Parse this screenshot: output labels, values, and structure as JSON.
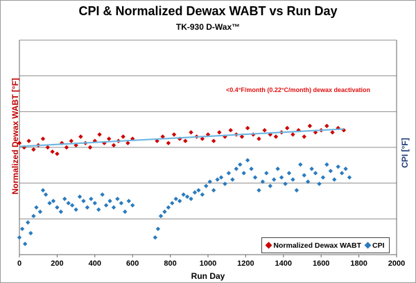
{
  "chart_data": {
    "type": "scatter",
    "title": "CPI & Normalized Dewax WABT vs Run Day",
    "subtitle": "TK-930 D-Wax™",
    "xlabel": "Run Day",
    "ylabel_left": "Normalized Dewax WABT [°F]",
    "ylabel_right": "CPI [°F]",
    "xlim": [
      0,
      2000
    ],
    "x_ticks": [
      "0",
      "200",
      "400",
      "600",
      "800",
      "1000",
      "1200",
      "1400",
      "1600",
      "1800",
      "2000"
    ],
    "grid": "horizontal",
    "legend_position": "bottom-right",
    "annotation": "<0.4°F/month (0.22°C/month)  dewax deactivation",
    "series": [
      {
        "name": "Normalized Dewax WABT",
        "color": "#cc0000",
        "marker": "diamond",
        "x": [
          0,
          25,
          50,
          75,
          100,
          125,
          150,
          175,
          200,
          225,
          250,
          275,
          300,
          325,
          350,
          375,
          400,
          425,
          450,
          475,
          500,
          525,
          550,
          575,
          600,
          730,
          760,
          790,
          820,
          850,
          880,
          910,
          940,
          970,
          1000,
          1030,
          1060,
          1090,
          1120,
          1150,
          1180,
          1210,
          1240,
          1270,
          1300,
          1330,
          1360,
          1390,
          1420,
          1450,
          1480,
          1510,
          1540,
          1570,
          1600,
          1630,
          1660,
          1690,
          1720
        ],
        "y": [
          0.52,
          0.5,
          0.53,
          0.49,
          0.51,
          0.54,
          0.5,
          0.48,
          0.47,
          0.52,
          0.5,
          0.53,
          0.51,
          0.55,
          0.52,
          0.5,
          0.53,
          0.56,
          0.52,
          0.54,
          0.51,
          0.53,
          0.55,
          0.52,
          0.54,
          0.53,
          0.55,
          0.52,
          0.56,
          0.54,
          0.53,
          0.57,
          0.55,
          0.54,
          0.56,
          0.53,
          0.57,
          0.55,
          0.58,
          0.56,
          0.55,
          0.59,
          0.56,
          0.54,
          0.58,
          0.56,
          0.55,
          0.57,
          0.59,
          0.56,
          0.58,
          0.55,
          0.6,
          0.57,
          0.58,
          0.6,
          0.57,
          0.59,
          0.58
        ]
      },
      {
        "name": "CPI",
        "color": "#2b7bbd",
        "marker": "diamond",
        "x": [
          0,
          15,
          30,
          45,
          60,
          75,
          90,
          110,
          125,
          140,
          160,
          180,
          200,
          220,
          240,
          260,
          280,
          300,
          320,
          340,
          360,
          380,
          400,
          420,
          440,
          460,
          480,
          500,
          520,
          540,
          560,
          580,
          600,
          720,
          735,
          750,
          770,
          790,
          810,
          830,
          850,
          870,
          890,
          910,
          930,
          950,
          970,
          990,
          1010,
          1030,
          1050,
          1070,
          1090,
          1110,
          1130,
          1150,
          1170,
          1190,
          1210,
          1230,
          1250,
          1270,
          1290,
          1310,
          1330,
          1350,
          1370,
          1390,
          1410,
          1430,
          1450,
          1470,
          1490,
          1510,
          1530,
          1550,
          1570,
          1590,
          1610,
          1630,
          1650,
          1670,
          1690,
          1710,
          1730,
          1750
        ],
        "y": [
          0.08,
          0.12,
          0.05,
          0.15,
          0.1,
          0.18,
          0.22,
          0.2,
          0.3,
          0.28,
          0.24,
          0.25,
          0.22,
          0.2,
          0.26,
          0.24,
          0.23,
          0.21,
          0.27,
          0.25,
          0.22,
          0.26,
          0.24,
          0.21,
          0.28,
          0.23,
          0.25,
          0.22,
          0.26,
          0.24,
          0.2,
          0.25,
          0.23,
          0.08,
          0.12,
          0.18,
          0.2,
          0.22,
          0.24,
          0.26,
          0.25,
          0.28,
          0.27,
          0.26,
          0.29,
          0.3,
          0.28,
          0.32,
          0.34,
          0.3,
          0.35,
          0.36,
          0.33,
          0.38,
          0.35,
          0.4,
          0.42,
          0.38,
          0.44,
          0.4,
          0.36,
          0.3,
          0.34,
          0.38,
          0.32,
          0.35,
          0.4,
          0.36,
          0.33,
          0.38,
          0.35,
          0.3,
          0.42,
          0.37,
          0.34,
          0.4,
          0.38,
          0.33,
          0.36,
          0.42,
          0.39,
          0.35,
          0.41,
          0.38,
          0.4,
          0.36
        ]
      }
    ]
  }
}
